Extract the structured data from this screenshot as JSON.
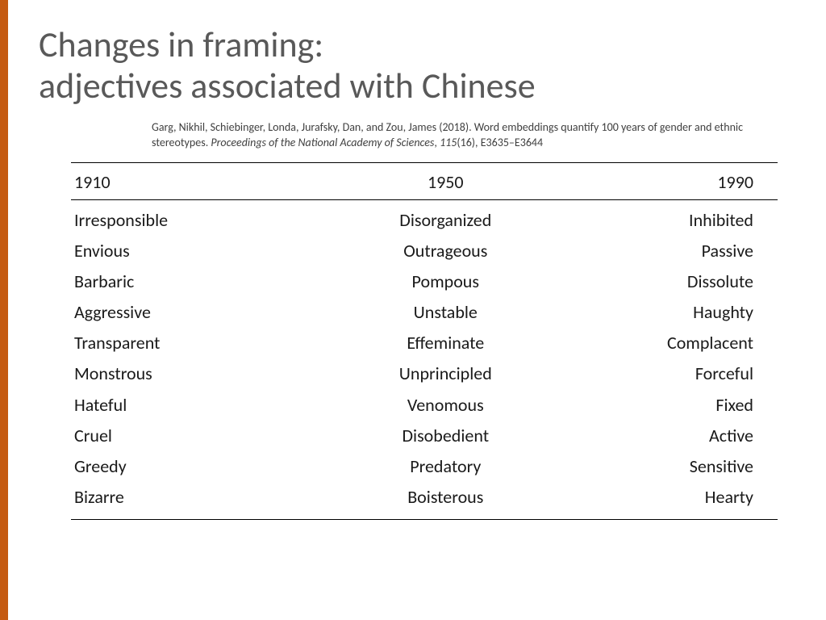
{
  "accent_color": "#c55a11",
  "title": {
    "line1": "Changes in framing:",
    "line2": "adjectives associated with Chinese"
  },
  "citation": {
    "authors_prefix": "Garg, Nikhil, Schiebinger, Londa, Jurafsky, Dan, and Zou, James (2018). Word embeddings quantify 100 years of gender and ethnic stereotypes. ",
    "journal": "Proceedings of the National Academy of Sciences",
    "suffix": ", ",
    "volume": "115",
    "rest": "(16), E3635–E3644"
  },
  "table": {
    "columns": [
      "1910",
      "1950",
      "1990"
    ],
    "rows": [
      [
        "Irresponsible",
        "Disorganized",
        "Inhibited"
      ],
      [
        "Envious",
        "Outrageous",
        "Passive"
      ],
      [
        "Barbaric",
        "Pompous",
        "Dissolute"
      ],
      [
        "Aggressive",
        "Unstable",
        "Haughty"
      ],
      [
        "Transparent",
        "Effeminate",
        "Complacent"
      ],
      [
        "Monstrous",
        "Unprincipled",
        "Forceful"
      ],
      [
        "Hateful",
        "Venomous",
        "Fixed"
      ],
      [
        "Cruel",
        "Disobedient",
        "Active"
      ],
      [
        "Greedy",
        "Predatory",
        "Sensitive"
      ],
      [
        "Bizarre",
        "Boisterous",
        "Hearty"
      ]
    ]
  }
}
